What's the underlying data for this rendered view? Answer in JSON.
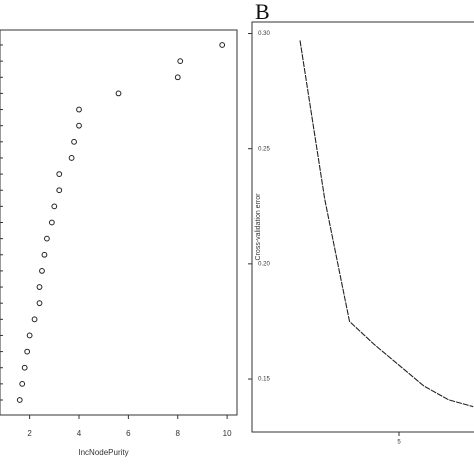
{
  "chart_data": [
    {
      "type": "dot",
      "x_label": "IncNodePurity",
      "categories": [
        null,
        null,
        null,
        null,
        null,
        null,
        null,
        null,
        null,
        null,
        null,
        null,
        null,
        null,
        null,
        null,
        null,
        null,
        null,
        null,
        null,
        null,
        null
      ],
      "values": [
        9.8,
        8.1,
        8.0,
        5.6,
        4.0,
        4.0,
        3.8,
        3.7,
        3.2,
        3.2,
        3.0,
        2.9,
        2.7,
        2.6,
        2.5,
        2.4,
        2.4,
        2.2,
        2.0,
        1.9,
        1.8,
        1.7,
        1.6
      ],
      "color": "#222222",
      "xlim": [
        0.8,
        10.4
      ],
      "xticks": [
        2,
        4,
        6,
        8,
        10
      ]
    },
    {
      "type": "line",
      "panel": "B",
      "y_label": "Cross-validation error",
      "x": [
        1,
        2,
        3,
        4,
        5,
        6,
        7,
        8
      ],
      "values": [
        0.297,
        0.228,
        0.175,
        0.165,
        0.156,
        0.147,
        0.141,
        0.138
      ],
      "color": "#222222",
      "xlim": [
        -0.94,
        8.03
      ],
      "xticks": [
        5
      ],
      "ylim": [
        0.127,
        0.305
      ],
      "yticks": [
        {
          "value": 0.15,
          "label": "0.15"
        },
        {
          "value": 0.2,
          "label": "0.20"
        },
        {
          "value": 0.25,
          "label": "0.25"
        },
        {
          "value": 0.3,
          "label": "0.30"
        }
      ]
    }
  ]
}
